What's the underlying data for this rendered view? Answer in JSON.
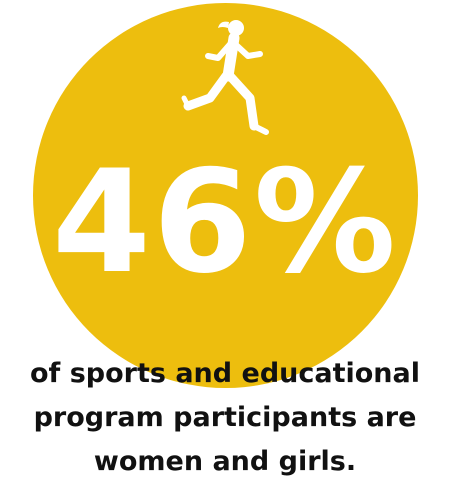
{
  "stat": {
    "value": "46%",
    "caption_lines": [
      "of sports and educational",
      "program participants are",
      "women and girls."
    ],
    "icon": "runner-icon"
  },
  "colors": {
    "accent": "#EDBE0E",
    "stat_text": "#FFFFFF",
    "caption_text": "#111111",
    "background": "#FFFFFF"
  }
}
